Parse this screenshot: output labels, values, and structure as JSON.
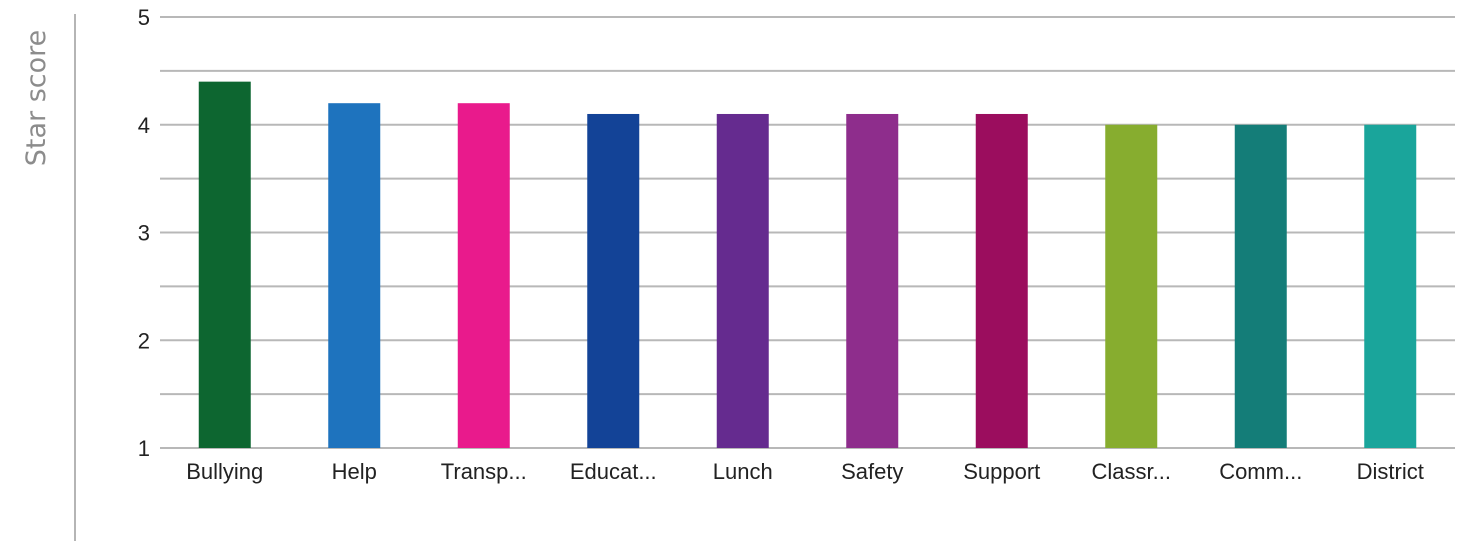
{
  "chart_data": {
    "type": "bar",
    "title": "",
    "xlabel": "",
    "ylabel": "Star score",
    "ylim": [
      1,
      5
    ],
    "y_ticks": [
      "1",
      "2",
      "3",
      "4",
      "5"
    ],
    "grid": true,
    "categories": [
      "Bullying",
      "Help",
      "Transp...",
      "Educat...",
      "Lunch",
      "Safety",
      "Support",
      "Classr...",
      "Comm...",
      "District"
    ],
    "values": [
      4.4,
      4.2,
      4.2,
      4.1,
      4.1,
      4.1,
      4.1,
      4.0,
      4.0,
      4.0
    ],
    "colors": [
      "#0d6630",
      "#1e73be",
      "#e91a8c",
      "#134397",
      "#652b8f",
      "#8e2d8c",
      "#9b0d5e",
      "#87ad2f",
      "#147d78",
      "#1aa59b"
    ]
  }
}
